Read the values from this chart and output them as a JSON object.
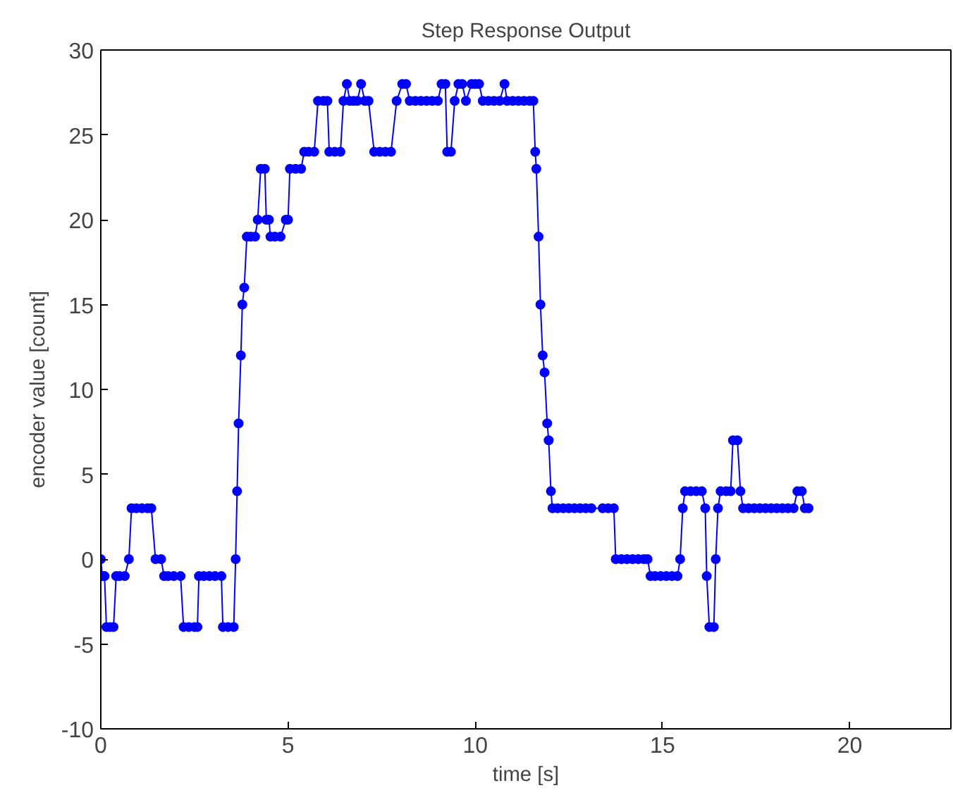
{
  "chart_data": {
    "type": "line",
    "title": "Step Response Output",
    "xlabel": "time [s]",
    "ylabel": "encoder value [count]",
    "xlim": [
      0,
      22.7
    ],
    "xticks": [
      0,
      5,
      10,
      15,
      20
    ],
    "ylim": [
      -10,
      30
    ],
    "yticks": [
      -10,
      -5,
      0,
      5,
      10,
      15,
      20,
      25,
      30
    ],
    "marker": "circle",
    "line_style": "solid",
    "series": [
      {
        "color": "#0000ff",
        "x": [
          0,
          0.04,
          0.1,
          0.15,
          0.25,
          0.34,
          0.41,
          0.5,
          0.64,
          0.75,
          0.82,
          0.95,
          1.1,
          1.25,
          1.35,
          1.46,
          1.61,
          1.69,
          1.8,
          1.95,
          2.13,
          2.21,
          2.35,
          2.5,
          2.58,
          2.62,
          2.75,
          2.9,
          3.05,
          3.22,
          3.26,
          3.4,
          3.55,
          3.6,
          3.64,
          3.68,
          3.74,
          3.78,
          3.83,
          3.9,
          4.0,
          4.12,
          4.19,
          4.27,
          4.38,
          4.42,
          4.49,
          4.53,
          4.65,
          4.8,
          4.94,
          5.0,
          5.05,
          5.2,
          5.35,
          5.43,
          5.55,
          5.7,
          5.8,
          5.95,
          6.05,
          6.1,
          6.25,
          6.4,
          6.48,
          6.57,
          6.65,
          6.75,
          6.85,
          6.95,
          7.05,
          7.15,
          7.3,
          7.45,
          7.6,
          7.75,
          7.9,
          8.05,
          8.15,
          8.25,
          8.4,
          8.55,
          8.7,
          8.85,
          9.0,
          9.1,
          9.2,
          9.25,
          9.35,
          9.45,
          9.55,
          9.65,
          9.75,
          9.9,
          10.0,
          10.1,
          10.2,
          10.35,
          10.5,
          10.65,
          10.78,
          10.85,
          11.0,
          11.15,
          11.3,
          11.45,
          11.55,
          11.6,
          11.63,
          11.69,
          11.74,
          11.8,
          11.85,
          11.92,
          11.96,
          12.02,
          12.06,
          12.2,
          12.35,
          12.5,
          12.65,
          12.8,
          12.95,
          13.1,
          13.4,
          13.55,
          13.7,
          13.75,
          13.9,
          14.05,
          14.2,
          14.35,
          14.5,
          14.6,
          14.68,
          14.8,
          14.95,
          15.1,
          15.25,
          15.4,
          15.47,
          15.54,
          15.6,
          15.75,
          15.9,
          16.05,
          16.14,
          16.18,
          16.25,
          16.37,
          16.42,
          16.48,
          16.55,
          16.7,
          16.82,
          16.88,
          17.0,
          17.08,
          17.15,
          17.3,
          17.45,
          17.6,
          17.75,
          17.9,
          18.05,
          18.2,
          18.35,
          18.5,
          18.6,
          18.72,
          18.8,
          18.9
        ],
        "values": [
          0,
          -1,
          -1,
          -4,
          -4,
          -4,
          -1,
          -1,
          -1,
          0,
          3,
          3,
          3,
          3,
          3,
          0,
          0,
          -1,
          -1,
          -1,
          -1,
          -4,
          -4,
          -4,
          -4,
          -1,
          -1,
          -1,
          -1,
          -1,
          -4,
          -4,
          -4,
          0,
          4,
          8,
          12,
          15,
          16,
          19,
          19,
          19,
          20,
          23,
          23,
          20,
          20,
          19,
          19,
          19,
          20,
          20,
          23,
          23,
          23,
          24,
          24,
          24,
          27,
          27,
          27,
          24,
          24,
          24,
          27,
          28,
          27,
          27,
          27,
          28,
          27,
          27,
          24,
          24,
          24,
          24,
          27,
          28,
          28,
          27,
          27,
          27,
          27,
          27,
          27,
          28,
          28,
          24,
          24,
          27,
          28,
          28,
          27,
          28,
          28,
          28,
          27,
          27,
          27,
          27,
          28,
          27,
          27,
          27,
          27,
          27,
          27,
          24,
          23,
          19,
          15,
          12,
          11,
          8,
          7,
          4,
          3,
          3,
          3,
          3,
          3,
          3,
          3,
          3,
          3,
          3,
          3,
          0,
          0,
          0,
          0,
          0,
          0,
          0,
          -1,
          -1,
          -1,
          -1,
          -1,
          -1,
          0,
          3,
          4,
          4,
          4,
          4,
          3,
          -1,
          -4,
          -4,
          0,
          3,
          4,
          4,
          4,
          7,
          7,
          4,
          3,
          3,
          3,
          3,
          3,
          3,
          3,
          3,
          3,
          3,
          4,
          4,
          3,
          3
        ]
      }
    ]
  }
}
